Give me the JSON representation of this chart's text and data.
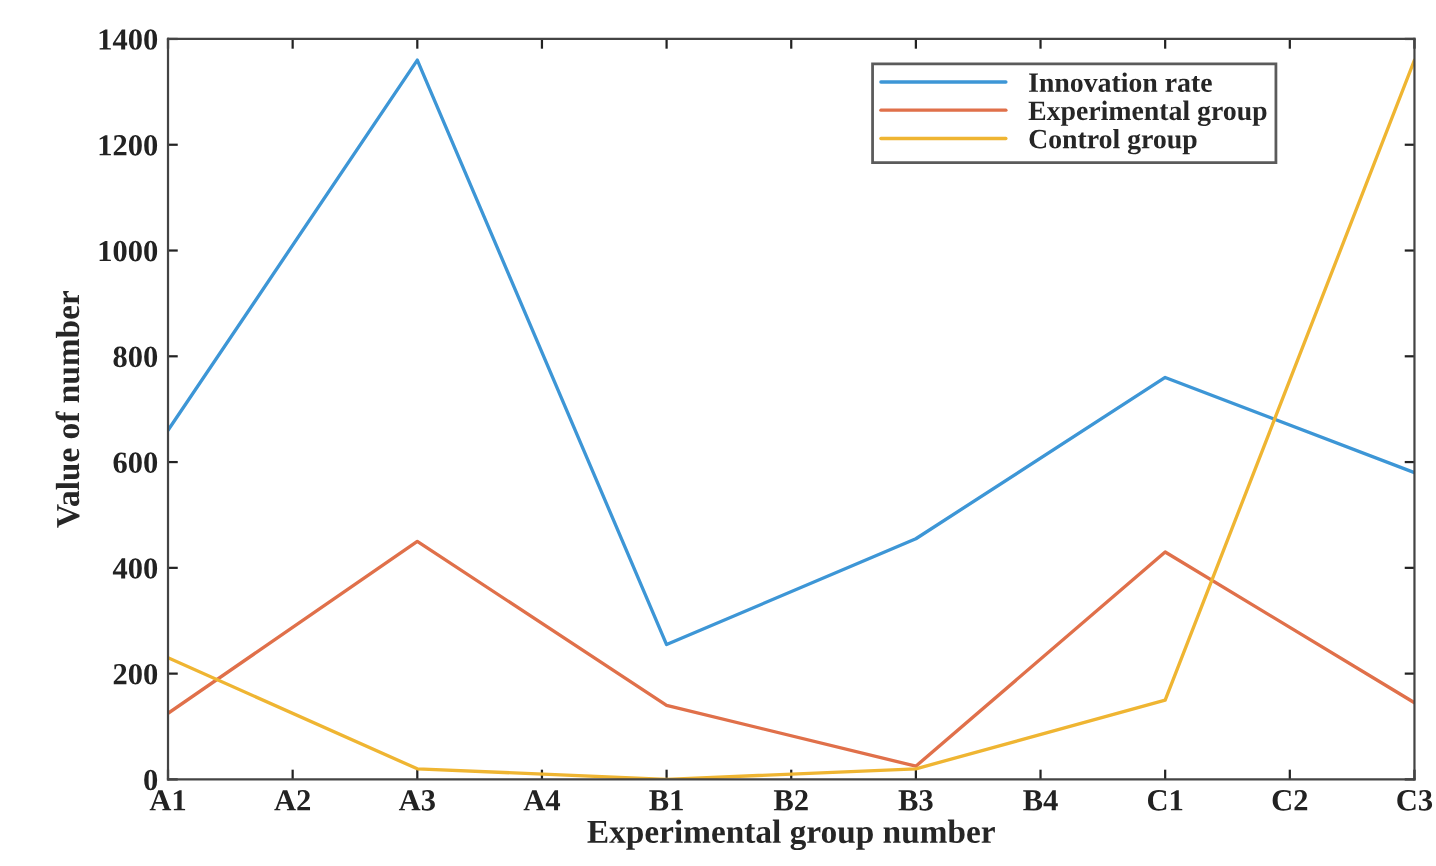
{
  "chart_data": {
    "type": "line",
    "xlabel": "Experimental group number",
    "ylabel": "Value of number",
    "categories": [
      "A1",
      "A2",
      "A3",
      "A4",
      "B1",
      "B2",
      "B3",
      "B4",
      "C1",
      "C2",
      "C3"
    ],
    "series": [
      {
        "name": "Innovation rate",
        "color": "#3d96d6",
        "x": [
          "A1",
          "A3",
          "B1",
          "B3",
          "C1",
          "C3"
        ],
        "values": [
          660,
          1360,
          255,
          455,
          760,
          580
        ]
      },
      {
        "name": "Experimental group",
        "color": "#e0704a",
        "x": [
          "A1",
          "A3",
          "B1",
          "B3",
          "C1",
          "C3"
        ],
        "values": [
          125,
          450,
          140,
          25,
          430,
          145
        ]
      },
      {
        "name": "Control group",
        "color": "#efb532",
        "x": [
          "A1",
          "A3",
          "B1",
          "B3",
          "C1",
          "C3"
        ],
        "values": [
          230,
          20,
          0,
          20,
          150,
          1360
        ]
      }
    ],
    "ylim": [
      0,
      1400
    ],
    "yticks": [
      0,
      200,
      400,
      600,
      800,
      1000,
      1200,
      1400
    ],
    "legend": "top right",
    "grid": false,
    "marker": "none",
    "line_style": "solid"
  }
}
